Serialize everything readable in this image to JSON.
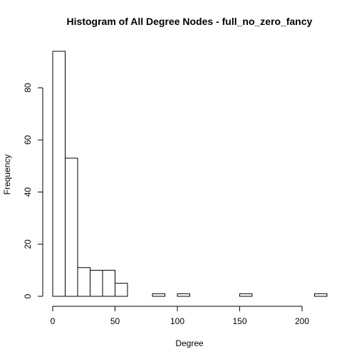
{
  "chart_data": {
    "type": "bar",
    "title": "Histogram of All Degree Nodes - full_no_zero_fancy",
    "xlabel": "Degree",
    "ylabel": "Frequency",
    "bin_width": 10,
    "x_range": [
      0,
      220
    ],
    "ylim": [
      0,
      94
    ],
    "x_ticks": [
      0,
      50,
      100,
      150,
      200
    ],
    "y_ticks": [
      0,
      20,
      40,
      60,
      80
    ],
    "bins": [
      {
        "start": 0,
        "end": 10,
        "count": 94
      },
      {
        "start": 10,
        "end": 20,
        "count": 53
      },
      {
        "start": 20,
        "end": 30,
        "count": 11
      },
      {
        "start": 30,
        "end": 40,
        "count": 10
      },
      {
        "start": 40,
        "end": 50,
        "count": 10
      },
      {
        "start": 50,
        "end": 60,
        "count": 5
      },
      {
        "start": 60,
        "end": 70,
        "count": 0
      },
      {
        "start": 70,
        "end": 80,
        "count": 0
      },
      {
        "start": 80,
        "end": 90,
        "count": 1
      },
      {
        "start": 90,
        "end": 100,
        "count": 0
      },
      {
        "start": 100,
        "end": 110,
        "count": 1
      },
      {
        "start": 110,
        "end": 120,
        "count": 0
      },
      {
        "start": 120,
        "end": 130,
        "count": 0
      },
      {
        "start": 130,
        "end": 140,
        "count": 0
      },
      {
        "start": 140,
        "end": 150,
        "count": 0
      },
      {
        "start": 150,
        "end": 160,
        "count": 1
      },
      {
        "start": 160,
        "end": 170,
        "count": 0
      },
      {
        "start": 170,
        "end": 180,
        "count": 0
      },
      {
        "start": 180,
        "end": 190,
        "count": 0
      },
      {
        "start": 190,
        "end": 200,
        "count": 0
      },
      {
        "start": 200,
        "end": 210,
        "count": 0
      },
      {
        "start": 210,
        "end": 220,
        "count": 1
      }
    ],
    "grid": false,
    "legend": "none"
  },
  "colors": {
    "background": "#ffffff",
    "bar_fill": "#ffffff",
    "bar_stroke": "#000000"
  }
}
